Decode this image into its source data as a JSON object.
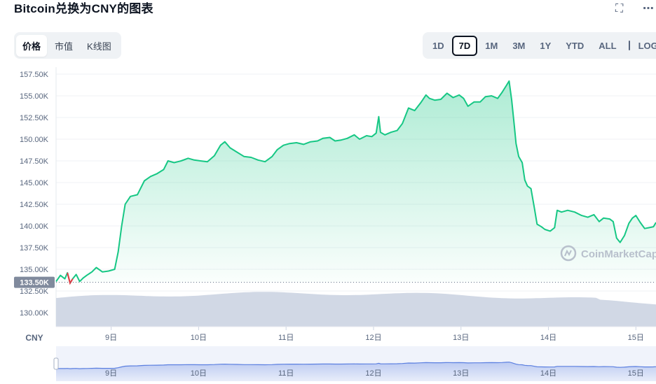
{
  "title": "Bitcoin兑换为CNY的图表",
  "icons": {
    "fullscreen": "fullscreen-icon",
    "more": "more-icon",
    "calendar": "calendar-icon"
  },
  "tabs": [
    {
      "label": "价格",
      "active": true
    },
    {
      "label": "市值",
      "active": false
    },
    {
      "label": "K线图",
      "active": false
    }
  ],
  "ranges": [
    {
      "label": "1D",
      "active": false
    },
    {
      "label": "7D",
      "active": true
    },
    {
      "label": "1M",
      "active": false
    },
    {
      "label": "3M",
      "active": false
    },
    {
      "label": "1Y",
      "active": false
    },
    {
      "label": "YTD",
      "active": false
    },
    {
      "label": "ALL",
      "active": false
    }
  ],
  "log_label": "LOG",
  "watermark": "CoinMarketCap",
  "chart_data": {
    "type": "area",
    "currency_label": "CNY",
    "y_ticks": [
      "157.50K",
      "155.00K",
      "152.50K",
      "150.00K",
      "147.50K",
      "145.00K",
      "142.50K",
      "140.00K",
      "137.50K",
      "135.00K",
      "132.50K",
      "130.00K"
    ],
    "y_tick_values": [
      157500,
      155000,
      152500,
      150000,
      147500,
      145000,
      142500,
      140000,
      137500,
      135000,
      132500,
      130000
    ],
    "x_ticks": [
      "9日",
      "10日",
      "11日",
      "12日",
      "13日",
      "14日",
      "15日"
    ],
    "x_tick_values": [
      9,
      10,
      11,
      12,
      13,
      14,
      15
    ],
    "ylim": [
      128500,
      158500
    ],
    "xlim": [
      8.37,
      15.23
    ],
    "reference_price": 133500,
    "reference_label": "133.50K",
    "grid": true,
    "colors": {
      "up_line": "#16c784",
      "down_line": "#ea3943",
      "volume": "#cfd6e4",
      "navigator": "#5b7fe0"
    },
    "series": [
      {
        "values": [
          [
            8.37,
            133600
          ],
          [
            8.42,
            134300
          ],
          [
            8.47,
            133900
          ],
          [
            8.5,
            134600
          ],
          [
            8.53,
            133400
          ],
          [
            8.56,
            133900
          ],
          [
            8.6,
            134400
          ],
          [
            8.64,
            133600
          ],
          [
            8.68,
            134000
          ],
          [
            8.72,
            134300
          ],
          [
            8.78,
            134700
          ],
          [
            8.83,
            135200
          ],
          [
            8.9,
            134700
          ],
          [
            8.97,
            134800
          ],
          [
            9.04,
            135000
          ],
          [
            9.08,
            137000
          ],
          [
            9.12,
            140000
          ],
          [
            9.16,
            142500
          ],
          [
            9.22,
            143400
          ],
          [
            9.3,
            143600
          ],
          [
            9.38,
            145200
          ],
          [
            9.45,
            145700
          ],
          [
            9.52,
            146000
          ],
          [
            9.6,
            146500
          ],
          [
            9.65,
            147500
          ],
          [
            9.72,
            147300
          ],
          [
            9.8,
            147500
          ],
          [
            9.88,
            147800
          ],
          [
            9.95,
            147600
          ],
          [
            10.02,
            147500
          ],
          [
            10.1,
            147400
          ],
          [
            10.18,
            148100
          ],
          [
            10.25,
            149300
          ],
          [
            10.3,
            149700
          ],
          [
            10.36,
            149000
          ],
          [
            10.44,
            148500
          ],
          [
            10.52,
            148000
          ],
          [
            10.6,
            147900
          ],
          [
            10.68,
            147600
          ],
          [
            10.76,
            147400
          ],
          [
            10.84,
            148000
          ],
          [
            10.9,
            148800
          ],
          [
            10.97,
            149300
          ],
          [
            11.04,
            149500
          ],
          [
            11.12,
            149600
          ],
          [
            11.2,
            149400
          ],
          [
            11.28,
            149700
          ],
          [
            11.36,
            149800
          ],
          [
            11.42,
            150100
          ],
          [
            11.5,
            150200
          ],
          [
            11.56,
            149800
          ],
          [
            11.63,
            149900
          ],
          [
            11.7,
            150100
          ],
          [
            11.78,
            150500
          ],
          [
            11.84,
            150000
          ],
          [
            11.92,
            150400
          ],
          [
            11.98,
            150300
          ],
          [
            12.03,
            150700
          ],
          [
            12.06,
            152600
          ],
          [
            12.08,
            150800
          ],
          [
            12.13,
            150500
          ],
          [
            12.2,
            150800
          ],
          [
            12.27,
            151000
          ],
          [
            12.33,
            151800
          ],
          [
            12.4,
            153600
          ],
          [
            12.47,
            153300
          ],
          [
            12.54,
            154200
          ],
          [
            12.6,
            155100
          ],
          [
            12.64,
            154700
          ],
          [
            12.7,
            154500
          ],
          [
            12.77,
            154600
          ],
          [
            12.84,
            155300
          ],
          [
            12.91,
            154800
          ],
          [
            12.98,
            155100
          ],
          [
            13.03,
            154700
          ],
          [
            13.08,
            153800
          ],
          [
            13.15,
            154300
          ],
          [
            13.22,
            154300
          ],
          [
            13.28,
            154900
          ],
          [
            13.35,
            155000
          ],
          [
            13.42,
            154700
          ],
          [
            13.47,
            155400
          ],
          [
            13.52,
            156200
          ],
          [
            13.55,
            156700
          ],
          [
            13.58,
            154500
          ],
          [
            13.61,
            151500
          ],
          [
            13.63,
            149500
          ],
          [
            13.66,
            148000
          ],
          [
            13.7,
            147300
          ],
          [
            13.73,
            145300
          ],
          [
            13.76,
            144600
          ],
          [
            13.8,
            144300
          ],
          [
            13.84,
            142000
          ],
          [
            13.87,
            140200
          ],
          [
            13.92,
            139900
          ],
          [
            13.96,
            139600
          ],
          [
            14.02,
            139400
          ],
          [
            14.07,
            139800
          ],
          [
            14.1,
            141800
          ],
          [
            14.15,
            141600
          ],
          [
            14.22,
            141800
          ],
          [
            14.3,
            141600
          ],
          [
            14.38,
            141200
          ],
          [
            14.45,
            141000
          ],
          [
            14.52,
            141300
          ],
          [
            14.58,
            140500
          ],
          [
            14.63,
            140900
          ],
          [
            14.7,
            140800
          ],
          [
            14.74,
            140500
          ],
          [
            14.78,
            138600
          ],
          [
            14.82,
            138100
          ],
          [
            14.87,
            138900
          ],
          [
            14.92,
            140300
          ],
          [
            14.96,
            140900
          ],
          [
            15.0,
            141200
          ],
          [
            15.05,
            140400
          ],
          [
            15.1,
            139700
          ],
          [
            15.15,
            139800
          ],
          [
            15.2,
            139900
          ],
          [
            15.23,
            140400
          ]
        ]
      }
    ]
  }
}
